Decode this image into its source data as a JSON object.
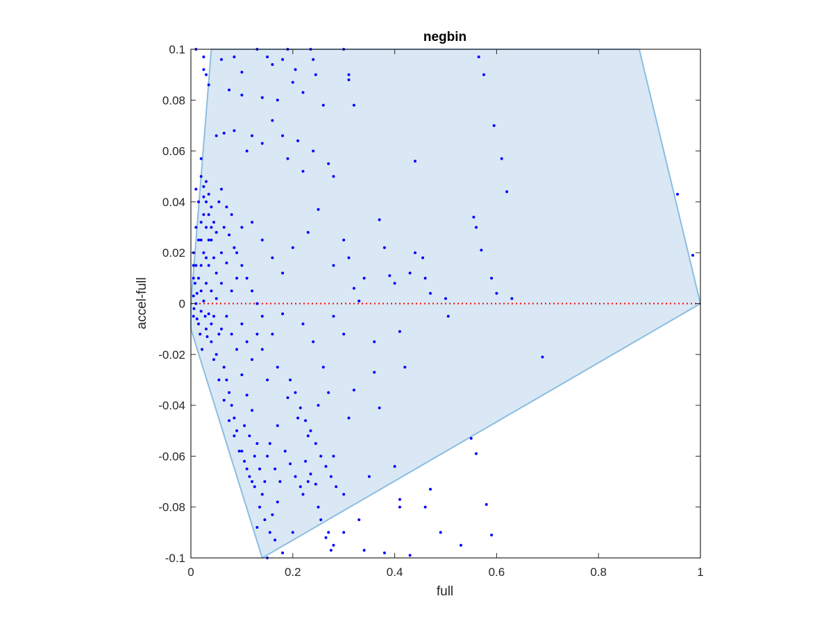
{
  "chart_data": {
    "type": "scatter",
    "title": "negbin",
    "xlabel": "full",
    "ylabel": "accel-full",
    "xlim": [
      0,
      1
    ],
    "ylim": [
      -0.1,
      0.1
    ],
    "xticks": [
      0,
      0.2,
      0.4,
      0.6,
      0.8,
      1
    ],
    "xtick_labels": [
      "0",
      "0.2",
      "0.4",
      "0.6",
      "0.8",
      "1"
    ],
    "yticks": [
      -0.1,
      -0.08,
      -0.06,
      -0.04,
      -0.02,
      0,
      0.02,
      0.04,
      0.06,
      0.08,
      0.1
    ],
    "ytick_labels": [
      "-0.1",
      "-0.08",
      "-0.06",
      "-0.04",
      "-0.02",
      "0",
      "0.02",
      "0.04",
      "0.06",
      "0.08",
      "0.1"
    ],
    "grid": false,
    "colors": {
      "points": "#0000ff",
      "region_fill": "#d9e8f4",
      "region_edge": "#8bbde0",
      "zero_line": "#ff0000",
      "axes": "#262626"
    },
    "region": [
      [
        0,
        0
      ],
      [
        0.04,
        0.1
      ],
      [
        0.88,
        0.1
      ],
      [
        1,
        0
      ],
      [
        0.14,
        -0.1
      ],
      [
        0,
        -0.01
      ]
    ],
    "zero_line": {
      "y": 0,
      "x": [
        0,
        1
      ],
      "style": "dotted"
    },
    "series": [
      {
        "points": [
          [
            0.01,
            0.1
          ],
          [
            0.025,
            0.097
          ],
          [
            0.06,
            0.096
          ],
          [
            0.085,
            0.097
          ],
          [
            0.13,
            0.1
          ],
          [
            0.15,
            0.097
          ],
          [
            0.19,
            0.1
          ],
          [
            0.235,
            0.1
          ],
          [
            0.3,
            0.1
          ],
          [
            0.565,
            0.097
          ],
          [
            0.575,
            0.09
          ],
          [
            0.31,
            0.09
          ],
          [
            0.31,
            0.088
          ],
          [
            0.32,
            0.078
          ],
          [
            0.075,
            0.084
          ],
          [
            0.035,
            0.086
          ],
          [
            0.1,
            0.091
          ],
          [
            0.16,
            0.094
          ],
          [
            0.18,
            0.096
          ],
          [
            0.205,
            0.092
          ],
          [
            0.24,
            0.096
          ],
          [
            0.245,
            0.09
          ],
          [
            0.025,
            0.092
          ],
          [
            0.03,
            0.09
          ],
          [
            0.1,
            0.082
          ],
          [
            0.14,
            0.081
          ],
          [
            0.17,
            0.08
          ],
          [
            0.2,
            0.087
          ],
          [
            0.22,
            0.083
          ],
          [
            0.26,
            0.078
          ],
          [
            0.595,
            0.07
          ],
          [
            0.61,
            0.057
          ],
          [
            0.62,
            0.044
          ],
          [
            0.44,
            0.056
          ],
          [
            0.955,
            0.043
          ],
          [
            0.985,
            0.019
          ],
          [
            0.05,
            0.066
          ],
          [
            0.065,
            0.067
          ],
          [
            0.085,
            0.068
          ],
          [
            0.11,
            0.06
          ],
          [
            0.12,
            0.066
          ],
          [
            0.14,
            0.063
          ],
          [
            0.16,
            0.072
          ],
          [
            0.18,
            0.066
          ],
          [
            0.21,
            0.064
          ],
          [
            0.24,
            0.06
          ],
          [
            0.27,
            0.055
          ],
          [
            0.28,
            0.05
          ],
          [
            0.19,
            0.057
          ],
          [
            0.22,
            0.052
          ],
          [
            0.02,
            0.057
          ],
          [
            0.02,
            0.05
          ],
          [
            0.025,
            0.046
          ],
          [
            0.03,
            0.04
          ],
          [
            0.025,
            0.035
          ],
          [
            0.03,
            0.03
          ],
          [
            0.035,
            0.025
          ],
          [
            0.01,
            0.045
          ],
          [
            0.015,
            0.04
          ],
          [
            0.02,
            0.032
          ],
          [
            0.01,
            0.03
          ],
          [
            0.015,
            0.025
          ],
          [
            0.005,
            0.02
          ],
          [
            0.01,
            0.015
          ],
          [
            0.005,
            0.01
          ],
          [
            0.015,
            0.01
          ],
          [
            0.02,
            0.005
          ],
          [
            0.005,
            0.003
          ],
          [
            0.01,
            0.0
          ],
          [
            0.02,
            -0.003
          ],
          [
            0.005,
            -0.005
          ],
          [
            0.015,
            -0.008
          ],
          [
            0.03,
            -0.01
          ],
          [
            0.04,
            -0.015
          ],
          [
            0.05,
            -0.02
          ],
          [
            0.06,
            -0.01
          ],
          [
            0.07,
            -0.005
          ],
          [
            0.08,
            0.005
          ],
          [
            0.09,
            0.01
          ],
          [
            0.05,
            0.012
          ],
          [
            0.06,
            0.02
          ],
          [
            0.04,
            0.025
          ],
          [
            0.065,
            0.03
          ],
          [
            0.08,
            0.035
          ],
          [
            0.1,
            0.03
          ],
          [
            0.12,
            0.032
          ],
          [
            0.14,
            0.025
          ],
          [
            0.16,
            0.018
          ],
          [
            0.18,
            0.012
          ],
          [
            0.2,
            0.022
          ],
          [
            0.23,
            0.028
          ],
          [
            0.25,
            0.037
          ],
          [
            0.28,
            0.015
          ],
          [
            0.3,
            0.025
          ],
          [
            0.31,
            0.018
          ],
          [
            0.32,
            0.006
          ],
          [
            0.33,
            0.001
          ],
          [
            0.37,
            0.033
          ],
          [
            0.38,
            0.022
          ],
          [
            0.39,
            0.011
          ],
          [
            0.4,
            0.008
          ],
          [
            0.5,
            0.002
          ],
          [
            0.505,
            -0.005
          ],
          [
            0.41,
            -0.011
          ],
          [
            0.42,
            -0.025
          ],
          [
            0.36,
            -0.027
          ],
          [
            0.37,
            -0.041
          ],
          [
            0.35,
            -0.068
          ],
          [
            0.4,
            -0.064
          ],
          [
            0.41,
            -0.077
          ],
          [
            0.41,
            -0.08
          ],
          [
            0.43,
            -0.099
          ],
          [
            0.38,
            -0.098
          ],
          [
            0.34,
            -0.097
          ],
          [
            0.3,
            -0.09
          ],
          [
            0.28,
            -0.095
          ],
          [
            0.27,
            -0.09
          ],
          [
            0.25,
            -0.08
          ],
          [
            0.23,
            -0.07
          ],
          [
            0.22,
            -0.075
          ],
          [
            0.2,
            -0.09
          ],
          [
            0.18,
            -0.098
          ],
          [
            0.15,
            -0.1
          ],
          [
            0.13,
            -0.088
          ],
          [
            0.16,
            -0.083
          ],
          [
            0.17,
            -0.078
          ],
          [
            0.14,
            -0.075
          ],
          [
            0.12,
            -0.07
          ],
          [
            0.11,
            -0.065
          ],
          [
            0.1,
            -0.058
          ],
          [
            0.09,
            -0.05
          ],
          [
            0.085,
            -0.045
          ],
          [
            0.08,
            -0.04
          ],
          [
            0.075,
            -0.035
          ],
          [
            0.07,
            -0.03
          ],
          [
            0.065,
            -0.025
          ],
          [
            0.1,
            -0.028
          ],
          [
            0.11,
            -0.036
          ],
          [
            0.12,
            -0.042
          ],
          [
            0.13,
            -0.055
          ],
          [
            0.15,
            -0.06
          ],
          [
            0.17,
            -0.048
          ],
          [
            0.19,
            -0.037
          ],
          [
            0.21,
            -0.045
          ],
          [
            0.23,
            -0.052
          ],
          [
            0.25,
            -0.04
          ],
          [
            0.27,
            -0.035
          ],
          [
            0.28,
            -0.06
          ],
          [
            0.3,
            -0.075
          ],
          [
            0.33,
            -0.085
          ],
          [
            0.31,
            -0.045
          ],
          [
            0.32,
            -0.034
          ],
          [
            0.26,
            -0.025
          ],
          [
            0.24,
            -0.015
          ],
          [
            0.22,
            -0.008
          ],
          [
            0.18,
            -0.004
          ],
          [
            0.16,
            -0.012
          ],
          [
            0.14,
            -0.018
          ],
          [
            0.12,
            -0.022
          ],
          [
            0.15,
            -0.03
          ],
          [
            0.17,
            -0.025
          ],
          [
            0.28,
            -0.005
          ],
          [
            0.3,
            -0.012
          ],
          [
            0.34,
            0.01
          ],
          [
            0.36,
            -0.015
          ],
          [
            0.46,
            -0.08
          ],
          [
            0.49,
            -0.09
          ],
          [
            0.53,
            -0.095
          ],
          [
            0.47,
            -0.073
          ],
          [
            0.55,
            -0.053
          ],
          [
            0.56,
            -0.059
          ],
          [
            0.58,
            -0.079
          ],
          [
            0.59,
            -0.091
          ],
          [
            0.69,
            -0.021
          ],
          [
            0.555,
            0.034
          ],
          [
            0.56,
            0.03
          ],
          [
            0.57,
            0.021
          ],
          [
            0.59,
            0.01
          ],
          [
            0.6,
            0.004
          ],
          [
            0.63,
            0.002
          ],
          [
            0.455,
            0.018
          ],
          [
            0.46,
            0.01
          ],
          [
            0.47,
            0.004
          ],
          [
            0.43,
            0.012
          ],
          [
            0.44,
            0.02
          ],
          [
            0.09,
            0.02
          ],
          [
            0.1,
            0.015
          ],
          [
            0.11,
            0.01
          ],
          [
            0.12,
            0.005
          ],
          [
            0.13,
            0.0
          ],
          [
            0.04,
            0.005
          ],
          [
            0.045,
            -0.005
          ],
          [
            0.06,
            0.008
          ],
          [
            0.07,
            0.016
          ],
          [
            0.08,
            -0.012
          ],
          [
            0.09,
            -0.018
          ],
          [
            0.1,
            -0.008
          ],
          [
            0.11,
            -0.015
          ],
          [
            0.13,
            -0.012
          ],
          [
            0.14,
            -0.005
          ],
          [
            0.035,
            0.035
          ],
          [
            0.04,
            0.03
          ],
          [
            0.045,
            0.018
          ],
          [
            0.05,
            0.002
          ],
          [
            0.055,
            -0.012
          ],
          [
            0.035,
            0.015
          ],
          [
            0.03,
            0.008
          ],
          [
            0.025,
            0.001
          ],
          [
            0.035,
            -0.004
          ],
          [
            0.04,
            -0.008
          ],
          [
            0.02,
            0.015
          ],
          [
            0.025,
            0.02
          ],
          [
            0.03,
            0.018
          ],
          [
            0.02,
            0.025
          ],
          [
            0.025,
            0.042
          ],
          [
            0.03,
            0.048
          ],
          [
            0.035,
            0.043
          ],
          [
            0.04,
            0.038
          ],
          [
            0.045,
            0.032
          ],
          [
            0.05,
            0.028
          ],
          [
            0.055,
            0.04
          ],
          [
            0.06,
            0.045
          ],
          [
            0.07,
            0.038
          ],
          [
            0.075,
            0.027
          ],
          [
            0.085,
            0.022
          ],
          [
            0.005,
            0.015
          ],
          [
            0.008,
            0.008
          ],
          [
            0.012,
            0.004
          ],
          [
            0.006,
            -0.002
          ],
          [
            0.012,
            -0.006
          ],
          [
            0.018,
            -0.012
          ],
          [
            0.022,
            -0.018
          ],
          [
            0.028,
            -0.005
          ],
          [
            0.032,
            -0.013
          ],
          [
            0.045,
            -0.022
          ],
          [
            0.055,
            -0.03
          ],
          [
            0.065,
            -0.038
          ],
          [
            0.075,
            -0.046
          ],
          [
            0.085,
            -0.052
          ],
          [
            0.095,
            -0.058
          ],
          [
            0.105,
            -0.062
          ],
          [
            0.115,
            -0.068
          ],
          [
            0.125,
            -0.072
          ],
          [
            0.135,
            -0.08
          ],
          [
            0.145,
            -0.085
          ],
          [
            0.155,
            -0.09
          ],
          [
            0.165,
            -0.093
          ],
          [
            0.105,
            -0.048
          ],
          [
            0.115,
            -0.052
          ],
          [
            0.125,
            -0.06
          ],
          [
            0.135,
            -0.065
          ],
          [
            0.145,
            -0.07
          ],
          [
            0.155,
            -0.055
          ],
          [
            0.165,
            -0.065
          ],
          [
            0.175,
            -0.07
          ],
          [
            0.185,
            -0.058
          ],
          [
            0.195,
            -0.063
          ],
          [
            0.205,
            -0.068
          ],
          [
            0.215,
            -0.072
          ],
          [
            0.195,
            -0.03
          ],
          [
            0.205,
            -0.035
          ],
          [
            0.215,
            -0.041
          ],
          [
            0.225,
            -0.046
          ],
          [
            0.235,
            -0.05
          ],
          [
            0.245,
            -0.055
          ],
          [
            0.255,
            -0.06
          ],
          [
            0.265,
            -0.064
          ],
          [
            0.275,
            -0.068
          ],
          [
            0.285,
            -0.072
          ],
          [
            0.255,
            -0.085
          ],
          [
            0.265,
            -0.092
          ],
          [
            0.275,
            -0.097
          ],
          [
            0.225,
            -0.062
          ],
          [
            0.235,
            -0.067
          ],
          [
            0.245,
            -0.071
          ]
        ]
      }
    ]
  }
}
